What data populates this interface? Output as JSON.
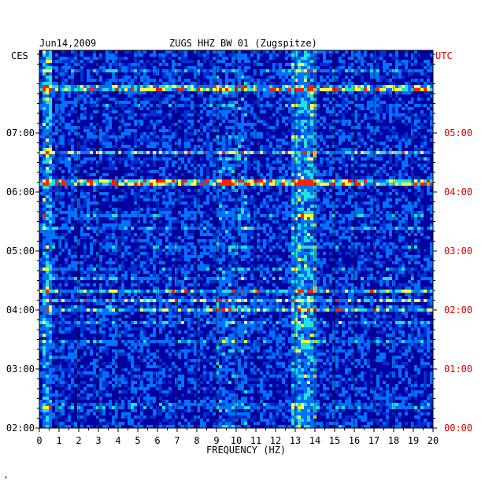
{
  "header": {
    "date": "Jun14,2009",
    "station": "ZUGS HHZ BW 01 (Zugspitze)",
    "left_zone": "CES",
    "right_zone": "UTC"
  },
  "footer_mark": "'",
  "chart_data": {
    "type": "heatmap",
    "title": "ZUGS HHZ BW 01 (Zugspitze)",
    "date": "Jun14,2009",
    "xlabel": "FREQUENCY (HZ)",
    "xlim": [
      0,
      20
    ],
    "x_ticks": [
      "0",
      "1",
      "2",
      "3",
      "4",
      "5",
      "6",
      "7",
      "8",
      "9",
      "10",
      "11",
      "12",
      "13",
      "14",
      "15",
      "16",
      "17",
      "18",
      "19",
      "20"
    ],
    "y_axis_left": {
      "label": "CES",
      "ticks": [
        "02:00",
        "03:00",
        "04:00",
        "05:00",
        "06:00",
        "07:00"
      ]
    },
    "y_axis_right": {
      "label": "UTC",
      "ticks": [
        "00:00",
        "01:00",
        "02:00",
        "03:00",
        "04:00",
        "05:00"
      ],
      "color": "#dd0000"
    },
    "ylim_hours": [
      2,
      8.4
    ],
    "colors": {
      "low": "#0000a0",
      "mid": "#0070ff",
      "high": "#20e0e0",
      "peak": "#ffff40",
      "max": "#ff2000",
      "grid": "#000000"
    },
    "energy_bands_hz": [
      {
        "from": 0.1,
        "to": 0.6,
        "level": "high"
      },
      {
        "from": 12.8,
        "to": 14.0,
        "level": "high"
      },
      {
        "from": 9.0,
        "to": 10.5,
        "level": "mid"
      }
    ],
    "strong_rows_ces": [
      "04:00",
      "04:10",
      "04:20",
      "06:10",
      "06:40",
      "07:45"
    ]
  }
}
